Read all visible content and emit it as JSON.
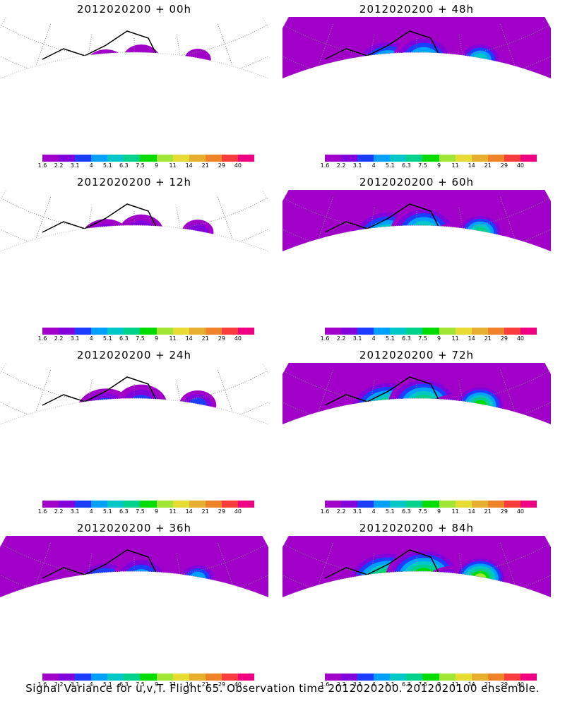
{
  "panels": [
    {
      "title": "2012020200 + 00h",
      "intensity": 0.15
    },
    {
      "title": "2012020200 + 12h",
      "intensity": 0.3
    },
    {
      "title": "2012020200 + 24h",
      "intensity": 0.45
    },
    {
      "title": "2012020200 + 36h",
      "intensity": 0.55
    },
    {
      "title": "2012020200 + 48h",
      "intensity": 0.65
    },
    {
      "title": "2012020200 + 60h",
      "intensity": 0.75
    },
    {
      "title": "2012020200 + 72h",
      "intensity": 0.85
    },
    {
      "title": "2012020200 + 84h",
      "intensity": 0.95
    }
  ],
  "colorbar": {
    "labels": [
      "1.6",
      "2.2",
      "3.1",
      "4",
      "5.1",
      "6.3",
      "7.5",
      "9",
      "11",
      "14",
      "21",
      "29",
      "40"
    ],
    "colors": [
      "#a000c8",
      "#8200dc",
      "#1e3cff",
      "#00a0ff",
      "#00c8c8",
      "#00d28c",
      "#00dc00",
      "#a0e632",
      "#e6dc32",
      "#e6af2d",
      "#f08228",
      "#fa3c3c",
      "#f00082"
    ]
  },
  "caption": "Signal Variance for u,v,T. Flight 65. Observation time 2012020200. 2012020100 ensemble."
}
